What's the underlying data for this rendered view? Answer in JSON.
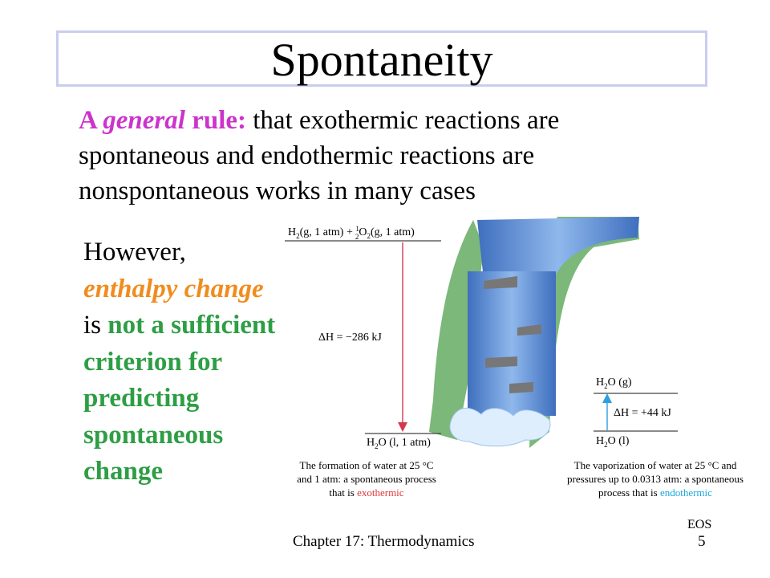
{
  "slide": {
    "title": "Spontaneity",
    "rule": {
      "lead_a": "A ",
      "lead_general": "general",
      "lead_rule": " rule:",
      "body": " that exothermic reactions are spontaneous and endothermic reactions are nonspontaneous works in many cases"
    },
    "however": {
      "line1": "However,",
      "emphasis": "enthalpy change",
      "is": "is ",
      "green_text": "not a sufficient criterion for predicting spontaneous change"
    },
    "footer": {
      "chapter": "Chapter 17: Thermodynamics",
      "label": "EOS",
      "page": "5"
    }
  },
  "figure": {
    "left_top_label_a": "H",
    "left_top_sub2": "2",
    "left_top_label_b": "(g, 1 atm) + ",
    "left_top_frac_num": "1",
    "left_top_frac_den": "2",
    "left_top_label_c": "O",
    "left_top_label_d": "(g, 1 atm)",
    "left_dh": "ΔH = −286 kJ",
    "left_bottom_label_a": "H",
    "left_bottom_label_b": "O (l, 1 atm)",
    "left_caption_1": "The formation of water at 25 °C",
    "left_caption_2": "and 1 atm: a spontaneous process",
    "left_caption_3a": "that is ",
    "left_caption_3b": "exothermic",
    "right_top_label_a": "H",
    "right_top_label_b": "O (g)",
    "right_dh": "ΔH = +44 kJ",
    "right_bottom_label_a": "H",
    "right_bottom_label_b": "O (l)",
    "right_caption_1": "The vaporization of water at 25 °C and",
    "right_caption_2": "pressures up to 0.0313 atm: a spontaneous",
    "right_caption_3a": "process that is ",
    "right_caption_3b": "endothermic",
    "colors": {
      "exothermic": "#e0393c",
      "endothermic": "#1aa8d8",
      "down_arrow": "#d43a4e",
      "up_arrow": "#2aa0e0",
      "cliff": "#7bb879",
      "water": "#5d8fd3"
    }
  }
}
